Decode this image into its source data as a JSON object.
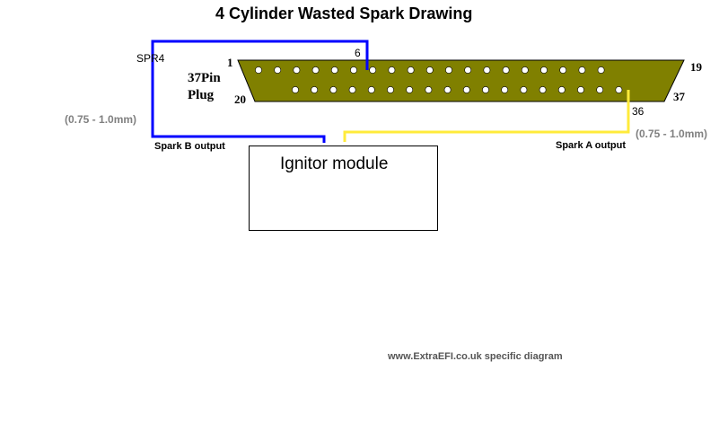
{
  "title": "4 Cylinder Wasted Spark Drawing",
  "connector": {
    "label_line1": "37Pin",
    "label_line2": "Plug",
    "pin_top_left": "1",
    "pin_top_right": "19",
    "pin_bottom_left": "20",
    "pin_bottom_right": "37",
    "top_row_pins": 19,
    "bottom_row_pins": 18,
    "body_color": "#808000"
  },
  "wires": {
    "spark_b": {
      "color": "#0000ff",
      "signal": "SPR4",
      "pin": "6",
      "output_label": "Spark B output",
      "gauge": "(0.75 - 1.0mm)"
    },
    "spark_a": {
      "color": "#ffeb3b",
      "pin": "36",
      "output_label": "Spark A output",
      "gauge": "(0.75 - 1.0mm)"
    }
  },
  "module": {
    "label": "Ignitor module"
  },
  "credit": "www.ExtraEFI.co.uk specific diagram"
}
